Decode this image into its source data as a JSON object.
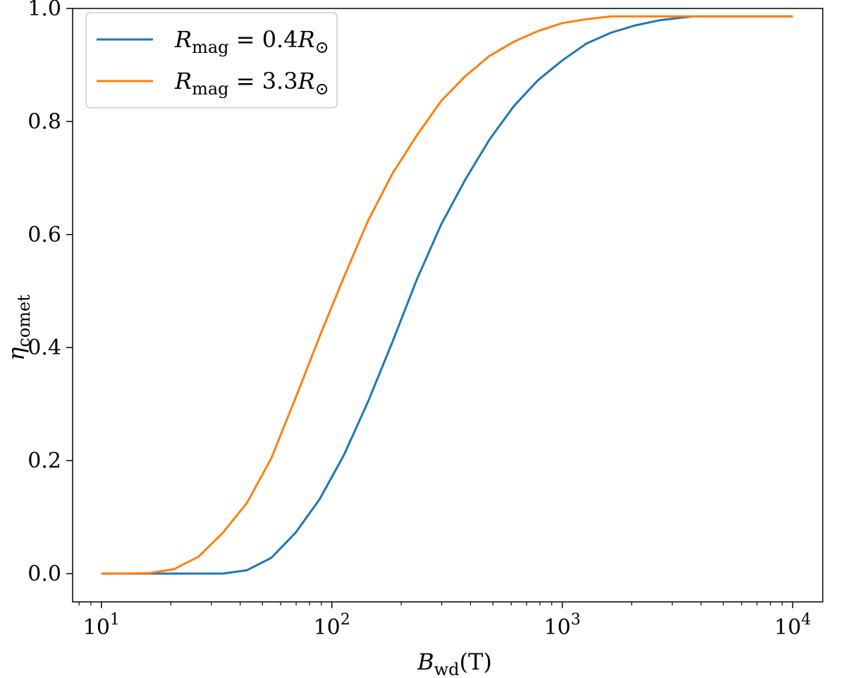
{
  "chart_data": {
    "type": "line",
    "xscale": "log",
    "xlim": [
      7.5,
      13500
    ],
    "ylim": [
      -0.05,
      1.0
    ],
    "xlabel": {
      "main": "B",
      "sub": "wd",
      "unit": "(T)"
    },
    "ylabel": {
      "main": "η",
      "sub": "comet"
    },
    "xticks": [
      {
        "value": 10,
        "base": "10",
        "exp": "1"
      },
      {
        "value": 100,
        "base": "10",
        "exp": "2"
      },
      {
        "value": 1000,
        "base": "10",
        "exp": "3"
      },
      {
        "value": 10000,
        "base": "10",
        "exp": "4"
      }
    ],
    "yticks": [
      {
        "value": 0.0,
        "label": "0.0"
      },
      {
        "value": 0.2,
        "label": "0.2"
      },
      {
        "value": 0.4,
        "label": "0.4"
      },
      {
        "value": 0.6,
        "label": "0.6"
      },
      {
        "value": 0.8,
        "label": "0.8"
      },
      {
        "value": 1.0,
        "label": "1.0"
      }
    ],
    "legend": {
      "position": "top-left"
    },
    "series": [
      {
        "name": "R_mag = 0.4R_⊙",
        "label_parts": {
          "main": "R",
          "sub": "mag",
          "eq": " = 0.4",
          "r": "R",
          "sun": "⊙"
        },
        "color": "#1f77b4",
        "x": [
          10,
          12.7,
          16.2,
          20.7,
          26.4,
          33.6,
          42.8,
          54.6,
          69.5,
          88.6,
          112.9,
          143.8,
          183.3,
          233.6,
          297.6,
          379.3,
          483.3,
          615.8,
          784.8,
          1000,
          1274,
          1624,
          2069,
          2637,
          3360,
          3700,
          10000
        ],
        "y": [
          0.0,
          0.0,
          0.0,
          0.0,
          0.0,
          0.0,
          0.006,
          0.028,
          0.072,
          0.132,
          0.21,
          0.305,
          0.41,
          0.52,
          0.617,
          0.697,
          0.768,
          0.827,
          0.873,
          0.908,
          0.938,
          0.957,
          0.97,
          0.979,
          0.984,
          0.986,
          0.986
        ]
      },
      {
        "name": "R_mag = 3.3R_⊙",
        "label_parts": {
          "main": "R",
          "sub": "mag",
          "eq": " = 3.3",
          "r": "R",
          "sun": "⊙"
        },
        "color": "#ff7f0e",
        "x": [
          10,
          12.7,
          16.2,
          20.7,
          26.4,
          33.6,
          42.8,
          54.6,
          69.5,
          88.6,
          112.9,
          143.8,
          183.3,
          233.6,
          297.6,
          379.3,
          483.3,
          615.8,
          784.8,
          1000,
          1274,
          1624,
          10000
        ],
        "y": [
          0.0,
          0.0,
          0.001,
          0.008,
          0.03,
          0.072,
          0.125,
          0.204,
          0.31,
          0.42,
          0.525,
          0.625,
          0.708,
          0.775,
          0.836,
          0.88,
          0.916,
          0.941,
          0.96,
          0.974,
          0.981,
          0.986,
          0.986
        ]
      }
    ]
  }
}
